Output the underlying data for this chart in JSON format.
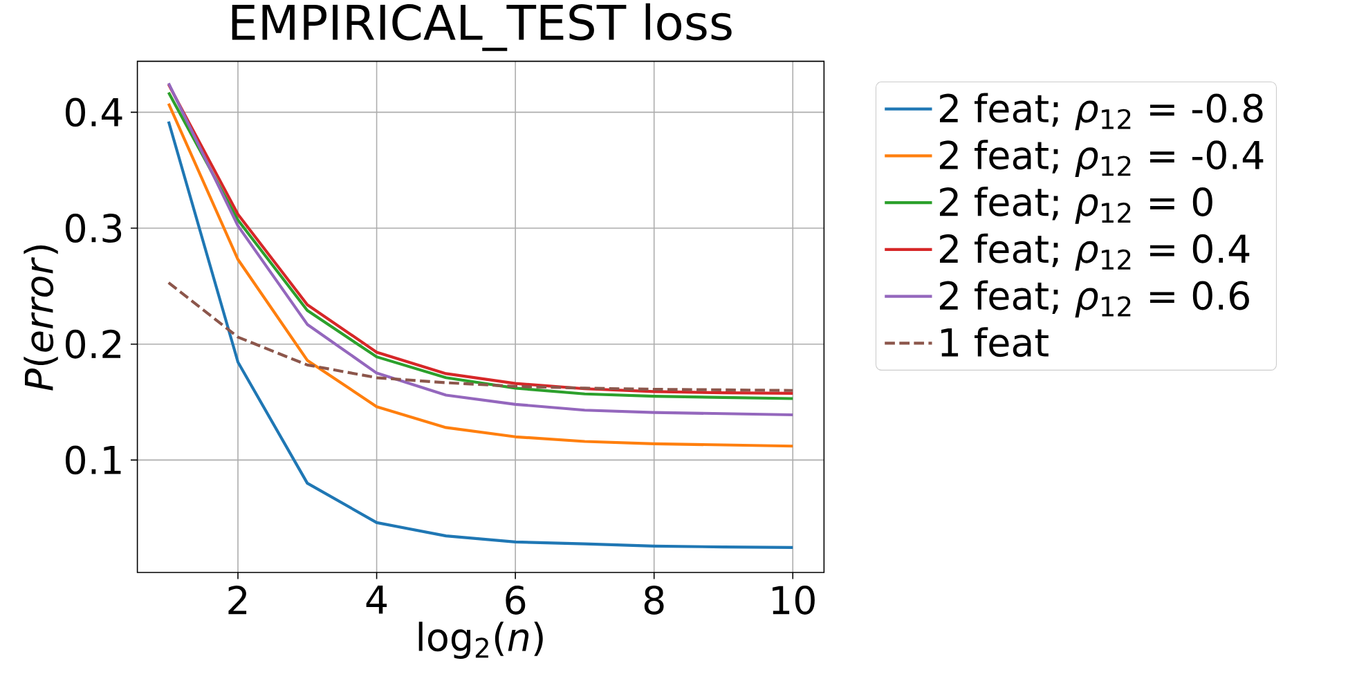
{
  "chart_data": {
    "type": "line",
    "title": "EMPIRICAL_TEST loss",
    "xlabel": "log$_{2}$(*n*)",
    "ylabel": "*P*(*error*)",
    "x": [
      1,
      2,
      3,
      4,
      5,
      6,
      7,
      8,
      9,
      10
    ],
    "series": [
      {
        "name": "2 feat; *ρ*$_{12}$ = -0.8",
        "color": "#1f77b4",
        "values": [
          0.392,
          0.1845,
          0.08,
          0.046,
          0.0345,
          0.0293,
          0.0277,
          0.0257,
          0.025,
          0.0245
        ]
      },
      {
        "name": "2 feat; *ρ*$_{12}$ = -0.4",
        "color": "#ff7f0e",
        "values": [
          0.4075,
          0.273,
          0.186,
          0.146,
          0.128,
          0.12,
          0.116,
          0.114,
          0.113,
          0.112
        ]
      },
      {
        "name": "2 feat; *ρ*$_{12}$ = 0",
        "color": "#2ca02c",
        "values": [
          0.417,
          0.307,
          0.229,
          0.189,
          0.171,
          0.162,
          0.157,
          0.155,
          0.154,
          0.153
        ]
      },
      {
        "name": "2 feat; *ρ*$_{12}$ = 0.4",
        "color": "#d62728",
        "values": [
          0.424,
          0.312,
          0.234,
          0.193,
          0.1745,
          0.166,
          0.1615,
          0.159,
          0.158,
          0.1575
        ]
      },
      {
        "name": "2 feat; *ρ*$_{12}$ = 0.6",
        "color": "#9467bd",
        "values": [
          0.425,
          0.302,
          0.217,
          0.175,
          0.156,
          0.148,
          0.143,
          0.141,
          0.14,
          0.139
        ]
      },
      {
        "name": "1 feat",
        "color": "#8c564b",
        "line_style": "dashed",
        "values": [
          0.253,
          0.206,
          0.182,
          0.171,
          0.1667,
          0.1635,
          0.162,
          0.161,
          0.1605,
          0.16
        ]
      }
    ],
    "xlim": [
      0.55,
      10.45
    ],
    "ylim": [
      0.003,
      0.444
    ],
    "xticks": [
      2,
      4,
      6,
      8,
      10
    ],
    "yticks": [
      0.1,
      0.2,
      0.3,
      0.4
    ],
    "grid": true,
    "legend": "right",
    "marker": "none",
    "line_style": "solid"
  }
}
